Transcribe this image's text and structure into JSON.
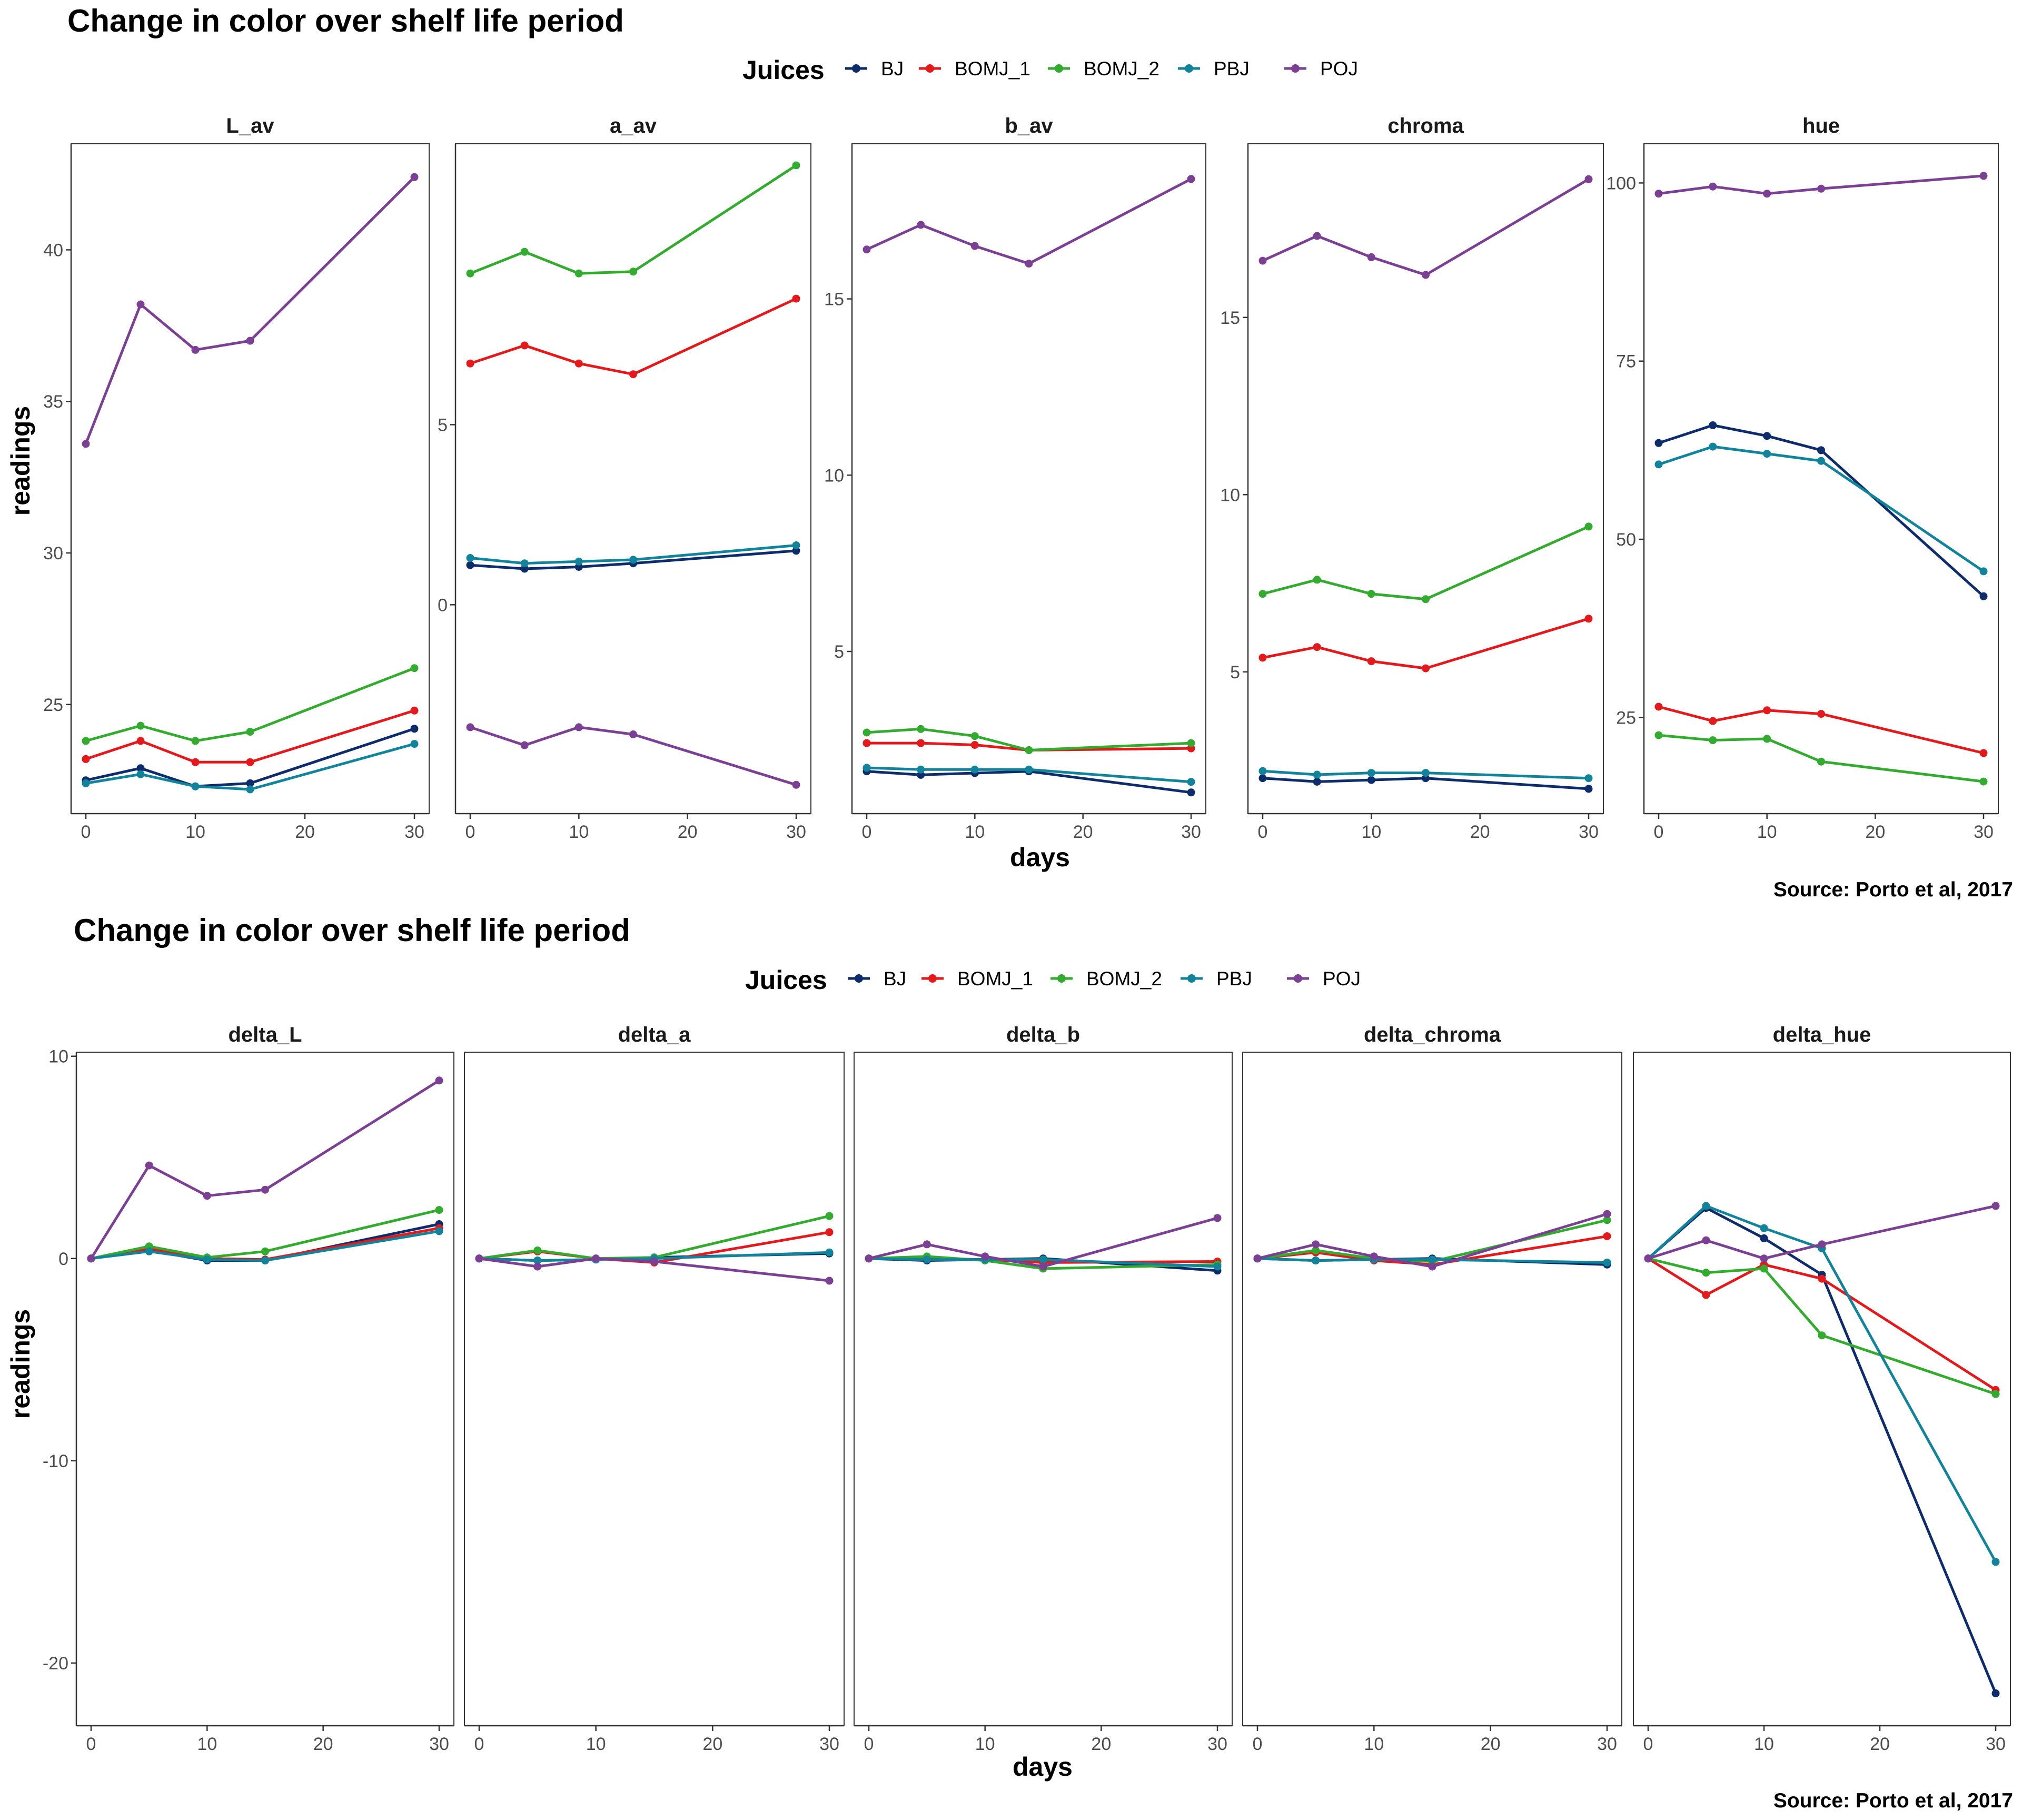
{
  "figures": [
    {
      "title": "Change in color over shelf life period",
      "legend_title": "Juices",
      "xlabel": "days",
      "ylabel": "readings",
      "caption": "Source: Porto et al, 2017"
    },
    {
      "title": "Change in color over shelf life period",
      "legend_title": "Juices",
      "xlabel": "days",
      "ylabel": "readings",
      "caption": "Source: Porto et al, 2017"
    }
  ],
  "colors": {
    "BJ": "#0d2c6b",
    "BOMJ_1": "#e3191c",
    "BOMJ_2": "#33ab2f",
    "PBJ": "#11849b",
    "POJ": "#7b3f93"
  },
  "chart_data": [
    {
      "type": "line",
      "title": "Change in color over shelf life period",
      "xlabel": "days",
      "ylabel": "readings",
      "legend": {
        "title": "Juices",
        "position": "top",
        "entries": [
          "BJ",
          "BOMJ_1",
          "BOMJ_2",
          "PBJ",
          "POJ"
        ]
      },
      "scales": "free_y",
      "grid": false,
      "x": [
        0,
        5,
        10,
        15,
        30
      ],
      "xticks": [
        0,
        10,
        20,
        30
      ],
      "panels": [
        {
          "name": "L_av",
          "ylim": [
            21.4,
            43.5
          ],
          "yticks": [
            25,
            30,
            35,
            40
          ],
          "series": [
            {
              "name": "BJ",
              "values": [
                22.5,
                22.9,
                22.3,
                22.4,
                24.2
              ]
            },
            {
              "name": "BOMJ_1",
              "values": [
                23.2,
                23.8,
                23.1,
                23.1,
                24.8
              ]
            },
            {
              "name": "BOMJ_2",
              "values": [
                23.8,
                24.3,
                23.8,
                24.1,
                26.2
              ]
            },
            {
              "name": "PBJ",
              "values": [
                22.4,
                22.7,
                22.3,
                22.2,
                23.7
              ]
            },
            {
              "name": "POJ",
              "values": [
                33.6,
                38.2,
                36.7,
                37.0,
                42.4
              ]
            }
          ]
        },
        {
          "name": "a_av",
          "ylim": [
            -5.8,
            12.8
          ],
          "yticks": [
            0,
            5
          ],
          "series": [
            {
              "name": "BJ",
              "values": [
                1.1,
                1.0,
                1.05,
                1.15,
                1.5
              ]
            },
            {
              "name": "BOMJ_1",
              "values": [
                6.7,
                7.2,
                6.7,
                6.4,
                8.5
              ]
            },
            {
              "name": "BOMJ_2",
              "values": [
                9.2,
                9.8,
                9.2,
                9.25,
                12.2
              ]
            },
            {
              "name": "PBJ",
              "values": [
                1.3,
                1.15,
                1.2,
                1.25,
                1.65
              ]
            },
            {
              "name": "POJ",
              "values": [
                -3.4,
                -3.9,
                -3.4,
                -3.6,
                -5.0
              ]
            }
          ]
        },
        {
          "name": "b_av",
          "ylim": [
            0.4,
            19.4
          ],
          "yticks": [
            5,
            10,
            15
          ],
          "series": [
            {
              "name": "BJ",
              "values": [
                1.6,
                1.5,
                1.55,
                1.6,
                1.0
              ]
            },
            {
              "name": "BOMJ_1",
              "values": [
                2.4,
                2.4,
                2.35,
                2.2,
                2.25
              ]
            },
            {
              "name": "BOMJ_2",
              "values": [
                2.7,
                2.8,
                2.6,
                2.2,
                2.4
              ]
            },
            {
              "name": "PBJ",
              "values": [
                1.7,
                1.65,
                1.65,
                1.65,
                1.3
              ]
            },
            {
              "name": "POJ",
              "values": [
                16.4,
                17.1,
                16.5,
                16.0,
                18.4
              ]
            }
          ]
        },
        {
          "name": "chroma",
          "ylim": [
            1.0,
            19.9
          ],
          "yticks": [
            5,
            10,
            15
          ],
          "series": [
            {
              "name": "BJ",
              "values": [
                2.0,
                1.9,
                1.95,
                2.0,
                1.7
              ]
            },
            {
              "name": "BOMJ_1",
              "values": [
                5.4,
                5.7,
                5.3,
                5.1,
                6.5
              ]
            },
            {
              "name": "BOMJ_2",
              "values": [
                7.2,
                7.6,
                7.2,
                7.05,
                9.1
              ]
            },
            {
              "name": "PBJ",
              "values": [
                2.2,
                2.1,
                2.15,
                2.15,
                2.0
              ]
            },
            {
              "name": "POJ",
              "values": [
                16.6,
                17.3,
                16.7,
                16.2,
                18.9
              ]
            }
          ]
        },
        {
          "name": "hue",
          "ylim": [
            11.5,
            105.5
          ],
          "yticks": [
            25,
            50,
            75,
            100
          ],
          "series": [
            {
              "name": "BJ",
              "values": [
                63.5,
                66.0,
                64.5,
                62.5,
                42.0
              ]
            },
            {
              "name": "BOMJ_1",
              "values": [
                26.5,
                24.5,
                26.0,
                25.5,
                20.0
              ]
            },
            {
              "name": "BOMJ_2",
              "values": [
                22.5,
                21.8,
                22.0,
                18.8,
                16.0
              ]
            },
            {
              "name": "PBJ",
              "values": [
                60.5,
                63.0,
                62.0,
                61.0,
                45.5
              ]
            },
            {
              "name": "POJ",
              "values": [
                98.5,
                99.5,
                98.5,
                99.2,
                101.0
              ]
            }
          ]
        }
      ]
    },
    {
      "type": "line",
      "title": "Change in color over shelf life period",
      "xlabel": "days",
      "ylabel": "readings",
      "legend": {
        "title": "Juices",
        "position": "top",
        "entries": [
          "BJ",
          "BOMJ_1",
          "BOMJ_2",
          "PBJ",
          "POJ"
        ]
      },
      "scales": "fixed",
      "grid": false,
      "x": [
        0,
        5,
        10,
        15,
        30
      ],
      "xticks": [
        0,
        10,
        20,
        30
      ],
      "ylim": [
        -23.1,
        10.2
      ],
      "yticks": [
        -20,
        -10,
        0,
        10
      ],
      "panels": [
        {
          "name": "delta_L",
          "series": [
            {
              "name": "BJ",
              "values": [
                0,
                0.4,
                -0.1,
                -0.1,
                1.7
              ]
            },
            {
              "name": "BOMJ_1",
              "values": [
                0,
                0.5,
                0.0,
                -0.05,
                1.5
              ]
            },
            {
              "name": "BOMJ_2",
              "values": [
                0,
                0.6,
                0.05,
                0.35,
                2.4
              ]
            },
            {
              "name": "PBJ",
              "values": [
                0,
                0.35,
                -0.05,
                -0.1,
                1.35
              ]
            },
            {
              "name": "POJ",
              "values": [
                0,
                4.6,
                3.1,
                3.4,
                8.8
              ]
            }
          ]
        },
        {
          "name": "delta_a",
          "series": [
            {
              "name": "BJ",
              "values": [
                0,
                -0.1,
                -0.05,
                0.05,
                0.25
              ]
            },
            {
              "name": "BOMJ_1",
              "values": [
                0,
                0.35,
                0.0,
                -0.2,
                1.3
              ]
            },
            {
              "name": "BOMJ_2",
              "values": [
                0,
                0.4,
                0.0,
                0.05,
                2.1
              ]
            },
            {
              "name": "PBJ",
              "values": [
                0,
                -0.1,
                -0.05,
                0.0,
                0.3
              ]
            },
            {
              "name": "POJ",
              "values": [
                0,
                -0.4,
                0.0,
                -0.15,
                -1.1
              ]
            }
          ]
        },
        {
          "name": "delta_b",
          "series": [
            {
              "name": "BJ",
              "values": [
                0,
                -0.1,
                -0.05,
                0.0,
                -0.6
              ]
            },
            {
              "name": "BOMJ_1",
              "values": [
                0,
                0.0,
                -0.05,
                -0.2,
                -0.15
              ]
            },
            {
              "name": "BOMJ_2",
              "values": [
                0,
                0.1,
                -0.1,
                -0.5,
                -0.3
              ]
            },
            {
              "name": "PBJ",
              "values": [
                0,
                -0.05,
                -0.05,
                -0.05,
                -0.4
              ]
            },
            {
              "name": "POJ",
              "values": [
                0,
                0.7,
                0.1,
                -0.4,
                2.0
              ]
            }
          ]
        },
        {
          "name": "delta_chroma",
          "series": [
            {
              "name": "BJ",
              "values": [
                0,
                -0.1,
                -0.05,
                0.0,
                -0.3
              ]
            },
            {
              "name": "BOMJ_1",
              "values": [
                0,
                0.3,
                -0.1,
                -0.3,
                1.1
              ]
            },
            {
              "name": "BOMJ_2",
              "values": [
                0,
                0.4,
                0.0,
                -0.15,
                1.9
              ]
            },
            {
              "name": "PBJ",
              "values": [
                0,
                -0.1,
                -0.05,
                -0.05,
                -0.2
              ]
            },
            {
              "name": "POJ",
              "values": [
                0,
                0.7,
                0.1,
                -0.4,
                2.2
              ]
            }
          ]
        },
        {
          "name": "delta_hue",
          "series": [
            {
              "name": "BJ",
              "values": [
                0,
                2.5,
                1.0,
                -0.8,
                -21.5
              ]
            },
            {
              "name": "BOMJ_1",
              "values": [
                0,
                -1.8,
                -0.3,
                -1.0,
                -6.5
              ]
            },
            {
              "name": "BOMJ_2",
              "values": [
                0,
                -0.7,
                -0.5,
                -3.8,
                -6.7
              ]
            },
            {
              "name": "PBJ",
              "values": [
                0,
                2.6,
                1.5,
                0.5,
                -15.0
              ]
            },
            {
              "name": "POJ",
              "values": [
                0,
                0.9,
                0.0,
                0.7,
                2.6
              ]
            }
          ]
        }
      ]
    }
  ]
}
